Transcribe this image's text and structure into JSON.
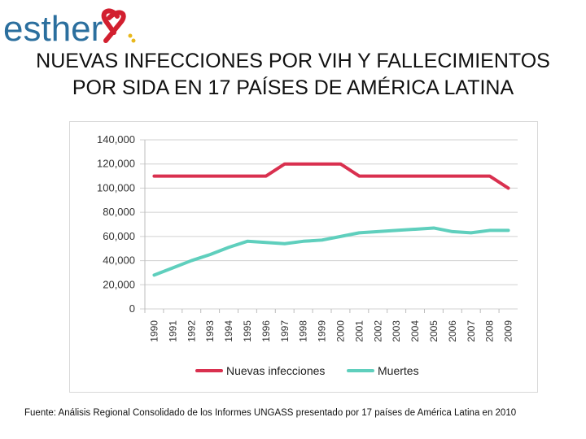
{
  "logo": {
    "text": "esther",
    "icon": "red-ribbon-icon"
  },
  "title": "NUEVAS INFECCIONES POR VIH Y FALLECIMIENTOS POR SIDA EN 17 PAÍSES DE AMÉRICA LATINA",
  "source": "Fuente: Análisis Regional Consolidado de los Informes UNGASS presentado por 17 países de América Latina en 2010",
  "colors": {
    "nuevas": "#d9304f",
    "muertes": "#5fcfbd",
    "logo_text": "#2b6f9e",
    "ribbon": "#d21f2f"
  },
  "chart_data": {
    "type": "line",
    "title": "",
    "xlabel": "",
    "ylabel": "",
    "ylim": [
      0,
      140000
    ],
    "ytick_labels": [
      "0",
      "20,000",
      "40,000",
      "60,000",
      "80,000",
      "100,000",
      "120,000",
      "140,000"
    ],
    "yticks": [
      0,
      20000,
      40000,
      60000,
      80000,
      100000,
      120000,
      140000
    ],
    "x": [
      "1990",
      "1991",
      "1992",
      "1993",
      "1994",
      "1995",
      "1996",
      "1997",
      "1998",
      "1999",
      "2000",
      "2001",
      "2002",
      "2003",
      "2004",
      "2005",
      "2006",
      "2007",
      "2008",
      "2009"
    ],
    "series": [
      {
        "name": "Nuevas infecciones",
        "values": [
          110000,
          110000,
          110000,
          110000,
          110000,
          110000,
          110000,
          120000,
          120000,
          120000,
          120000,
          110000,
          110000,
          110000,
          110000,
          110000,
          110000,
          110000,
          110000,
          100000
        ]
      },
      {
        "name": "Muertes",
        "values": [
          28000,
          34000,
          40000,
          45000,
          51000,
          56000,
          55000,
          54000,
          56000,
          57000,
          60000,
          63000,
          64000,
          65000,
          66000,
          67000,
          64000,
          63000,
          65000,
          65000
        ]
      }
    ],
    "grid": true,
    "legend": "bottom"
  }
}
